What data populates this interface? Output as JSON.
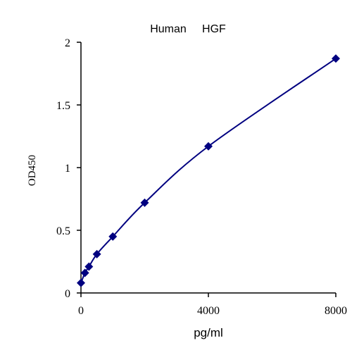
{
  "chart_data": {
    "type": "scatter",
    "title": "Human     HGF",
    "xlabel": "pg/ml",
    "ylabel": "OD450",
    "xlim": [
      0,
      8000
    ],
    "ylim": [
      0,
      2
    ],
    "xticks": [
      0,
      4000,
      8000
    ],
    "xtick_labels": [
      "0",
      "4000",
      "8000"
    ],
    "yticks": [
      0,
      0.5,
      1,
      1.5,
      2
    ],
    "ytick_labels": [
      "0",
      "0.5",
      "1",
      "1.5",
      "2"
    ],
    "grid": false,
    "series": [
      {
        "x": [
          0,
          125,
          250,
          500,
          1000,
          2000,
          4000,
          8000
        ],
        "y": [
          0.08,
          0.16,
          0.21,
          0.31,
          0.45,
          0.72,
          1.17,
          1.87
        ],
        "marker": "diamond",
        "fit": "smooth-curve"
      }
    ],
    "colors": {
      "series": "#000080",
      "axis": "#000000"
    }
  }
}
